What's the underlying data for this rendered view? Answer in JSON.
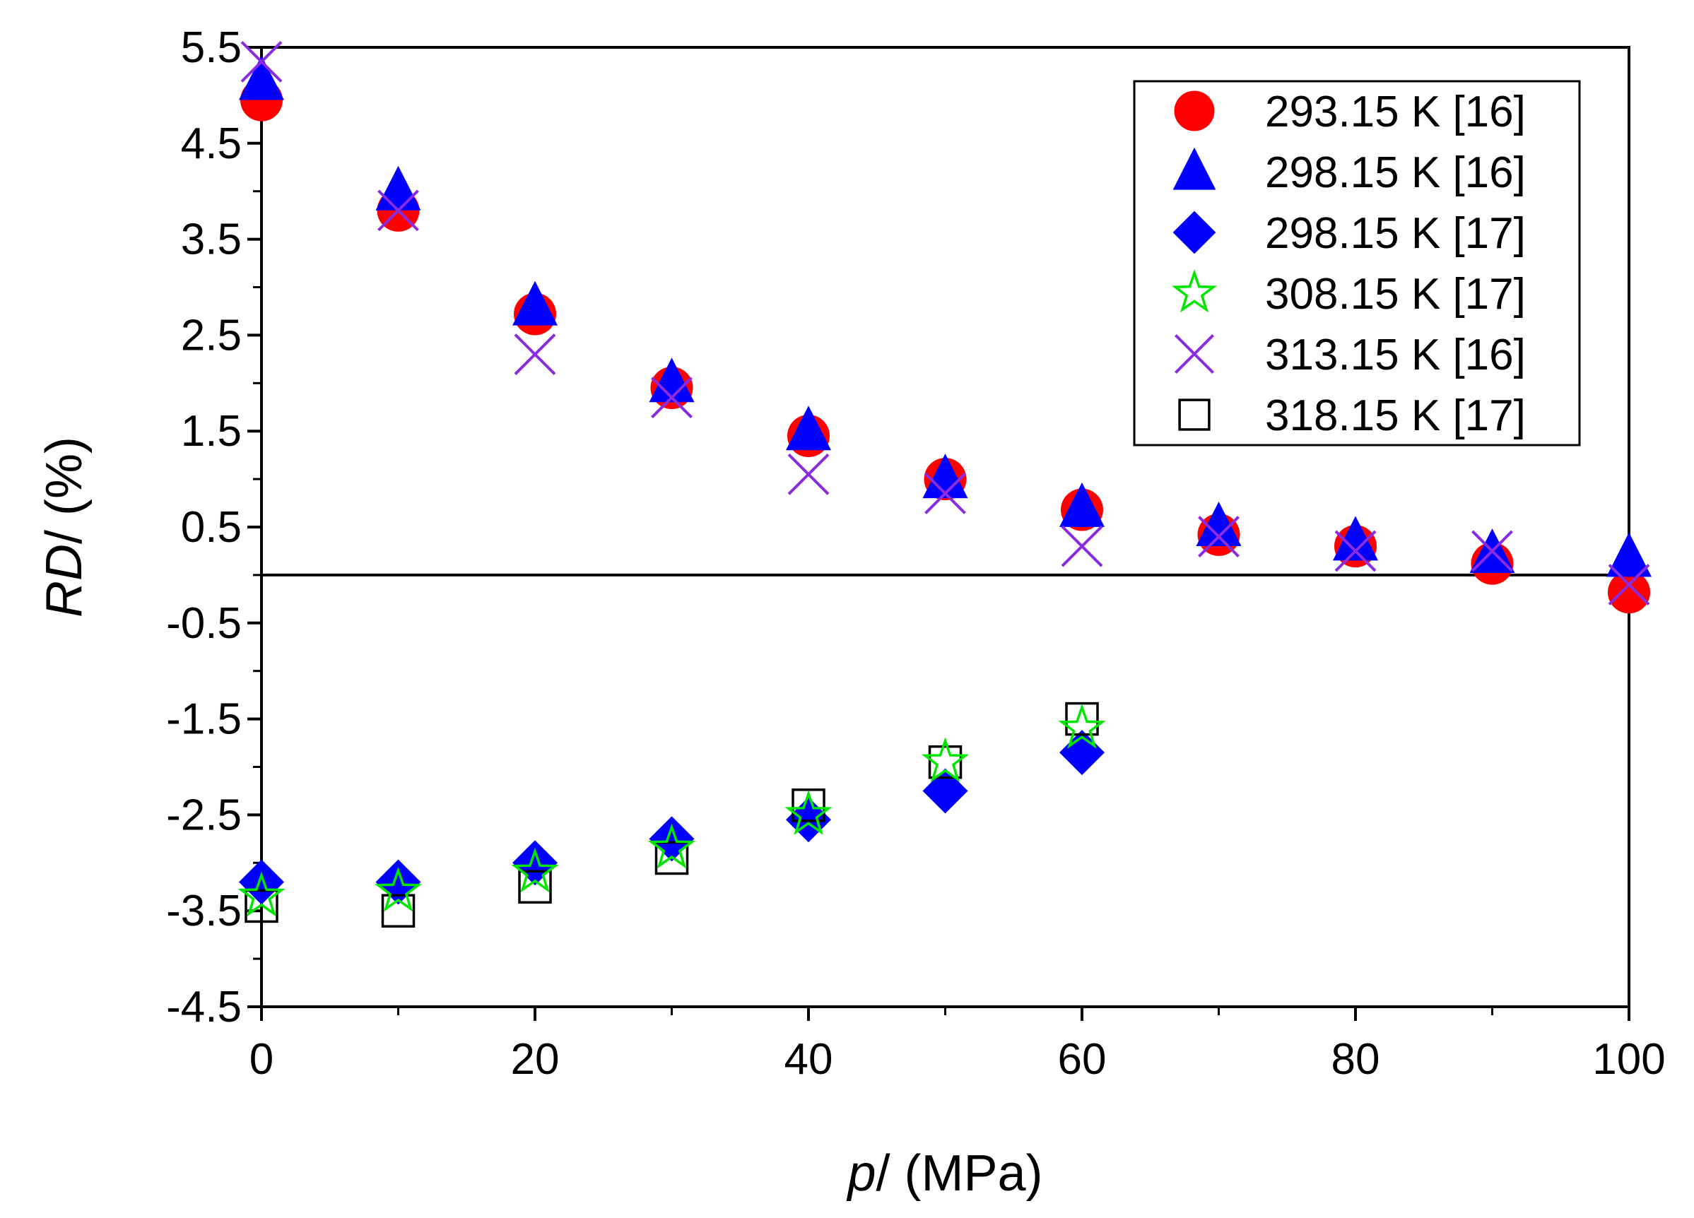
{
  "chart_data": {
    "type": "scatter",
    "title": "",
    "xlabel_italic": "p",
    "xlabel_rest": "/ (MPa)",
    "ylabel_italic": "RD",
    "ylabel_rest": "/ (%)",
    "xlim": [
      0,
      100
    ],
    "ylim": [
      -4.5,
      5.5
    ],
    "x_ticks": [
      0,
      20,
      40,
      60,
      80,
      100
    ],
    "x_tick_labels": [
      "0",
      "20",
      "40",
      "60",
      "80",
      "100"
    ],
    "y_ticks": [
      5.5,
      4.5,
      3.5,
      2.5,
      1.5,
      0.5,
      -0.5,
      -1.5,
      -2.5,
      -3.5,
      -4.5
    ],
    "y_tick_labels": [
      "5.5",
      "4.5",
      "3.5",
      "2.5",
      "1.5",
      "0.5",
      "-0.5",
      "-1.5",
      "-2.5",
      "-3.5",
      "-4.5"
    ],
    "reference_line_y": 0,
    "legend_position": "top-right",
    "series": [
      {
        "name": "293.15 K [16]",
        "marker": "circle",
        "color": "#ff0000",
        "x": [
          0,
          10,
          20,
          30,
          40,
          50,
          60,
          70,
          80,
          90,
          100
        ],
        "y": [
          4.95,
          3.8,
          2.72,
          1.95,
          1.45,
          1.0,
          0.68,
          0.42,
          0.3,
          0.12,
          -0.18
        ]
      },
      {
        "name": "298.15 K [16]",
        "marker": "triangle",
        "color": "#0000ff",
        "x": [
          0,
          10,
          20,
          30,
          40,
          50,
          60,
          70,
          80,
          90,
          100
        ],
        "y": [
          5.15,
          4.0,
          2.8,
          2.0,
          1.5,
          1.0,
          0.7,
          0.5,
          0.35,
          0.22,
          0.18
        ]
      },
      {
        "name": "298.15 K [17]",
        "marker": "diamond",
        "color": "#0000ff",
        "x": [
          0,
          10,
          20,
          30,
          40,
          50,
          60
        ],
        "y": [
          -3.2,
          -3.2,
          -3.0,
          -2.75,
          -2.55,
          -2.25,
          -1.85
        ]
      },
      {
        "name": "308.15 K [17]",
        "marker": "star",
        "color": "#00e600",
        "x": [
          0,
          10,
          20,
          30,
          40,
          50,
          60
        ],
        "y": [
          -3.35,
          -3.3,
          -3.1,
          -2.85,
          -2.5,
          -1.95,
          -1.6
        ]
      },
      {
        "name": "313.15 K [16]",
        "marker": "x",
        "color": "#8a2be2",
        "x": [
          0,
          10,
          20,
          30,
          40,
          50,
          60,
          70,
          80,
          90,
          100
        ],
        "y": [
          5.35,
          3.8,
          2.3,
          1.85,
          1.05,
          0.85,
          0.3,
          0.4,
          0.25,
          0.25,
          -0.1
        ]
      },
      {
        "name": "318.15 K [17]",
        "marker": "square",
        "color": "#000000",
        "x": [
          0,
          10,
          20,
          30,
          40,
          50,
          60
        ],
        "y": [
          -3.45,
          -3.5,
          -3.25,
          -2.95,
          -2.4,
          -1.95,
          -1.5
        ]
      }
    ]
  }
}
